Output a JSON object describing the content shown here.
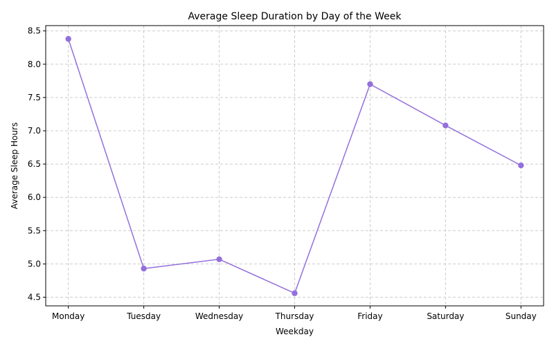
{
  "chart_data": {
    "type": "line",
    "title": "Average Sleep Duration by Day of the Week",
    "xlabel": "Weekday",
    "ylabel": "Average Sleep Hours",
    "categories": [
      "Monday",
      "Tuesday",
      "Wednesday",
      "Thursday",
      "Friday",
      "Saturday",
      "Sunday"
    ],
    "series": [
      {
        "values": [
          8.38,
          4.93,
          5.07,
          4.56,
          7.7,
          7.08,
          6.48
        ],
        "color": "#9370db",
        "marker": "circle"
      }
    ],
    "ylim": [
      4.37,
      8.58
    ],
    "yticks": [
      "4.5",
      "5.0",
      "5.5",
      "6.0",
      "6.5",
      "7.0",
      "7.5",
      "8.0",
      "8.5"
    ],
    "grid": true,
    "grid_style": "dashed"
  }
}
